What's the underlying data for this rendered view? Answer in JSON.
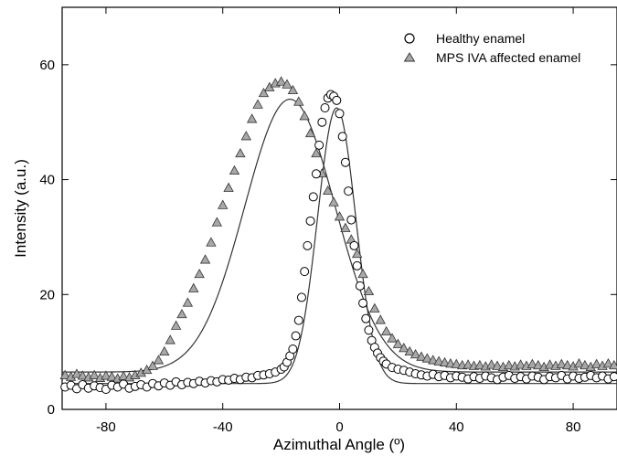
{
  "chart_data": {
    "type": "scatter",
    "title": "",
    "xlabel": "Azimuthal Angle (º)",
    "ylabel": "Intensity (a.u.)",
    "xlim": [
      -95,
      95
    ],
    "ylim": [
      0,
      70
    ],
    "xticks": [
      -80,
      -40,
      0,
      40,
      80
    ],
    "yticks": [
      0,
      20,
      40,
      60
    ],
    "grid": false,
    "legend_position": "top-right",
    "colors": {
      "axis": "#000000",
      "circle_stroke": "#000000",
      "circle_fill": "#ffffff",
      "triangle_fill": "#a8a8a8",
      "triangle_stroke": "#333333",
      "fit_line": "#333333"
    },
    "series": [
      {
        "name": "Healthy enamel",
        "marker": "circle",
        "x": [
          -94,
          -92,
          -90,
          -88,
          -86,
          -84,
          -82,
          -80,
          -78,
          -76,
          -74,
          -72,
          -70,
          -68,
          -66,
          -64,
          -62,
          -60,
          -58,
          -56,
          -54,
          -52,
          -50,
          -48,
          -46,
          -44,
          -42,
          -40,
          -38,
          -36,
          -34,
          -32,
          -30,
          -28,
          -26,
          -24,
          -22,
          -20,
          -19,
          -18,
          -17,
          -16,
          -15,
          -14,
          -13,
          -12,
          -11,
          -10,
          -9,
          -8,
          -7,
          -6,
          -5,
          -4,
          -3,
          -2,
          -1,
          0,
          1,
          2,
          3,
          4,
          5,
          6,
          7,
          8,
          9,
          10,
          11,
          12,
          13,
          14,
          15,
          16,
          18,
          20,
          22,
          24,
          26,
          28,
          30,
          32,
          34,
          36,
          38,
          40,
          42,
          44,
          46,
          48,
          50,
          52,
          54,
          56,
          58,
          60,
          62,
          64,
          66,
          68,
          70,
          72,
          74,
          76,
          78,
          80,
          82,
          84,
          86,
          88,
          90,
          92,
          94
        ],
        "y": [
          3.9,
          4.2,
          3.6,
          4.3,
          3.7,
          4.1,
          3.8,
          3.5,
          4.2,
          3.9,
          4.4,
          3.7,
          4.0,
          4.3,
          3.9,
          4.5,
          4.1,
          4.6,
          4.2,
          4.8,
          4.3,
          4.7,
          4.5,
          4.9,
          4.6,
          5.0,
          4.8,
          5.2,
          5.1,
          5.4,
          5.2,
          5.6,
          5.5,
          5.9,
          6.0,
          6.2,
          6.5,
          7.0,
          7.4,
          8.2,
          9.3,
          10.5,
          12.8,
          15.5,
          19.5,
          24.0,
          28.5,
          32.8,
          37.0,
          41.0,
          46.0,
          50.0,
          52.5,
          54.2,
          54.8,
          54.5,
          53.8,
          51.5,
          47.5,
          43.0,
          38.0,
          33.0,
          28.5,
          25.0,
          21.5,
          18.5,
          15.8,
          13.8,
          12.0,
          10.8,
          9.8,
          9.0,
          8.4,
          7.9,
          7.3,
          7.0,
          6.8,
          6.5,
          6.2,
          6.0,
          5.8,
          6.1,
          5.7,
          5.9,
          5.5,
          5.8,
          5.6,
          5.3,
          5.7,
          5.4,
          5.8,
          5.5,
          5.2,
          5.6,
          5.9,
          5.4,
          5.7,
          5.3,
          5.8,
          5.6,
          5.2,
          5.7,
          5.5,
          5.9,
          5.3,
          5.8,
          5.4,
          5.6,
          5.9,
          5.5,
          5.8,
          5.3,
          5.7
        ]
      },
      {
        "name": "MPS IVA affected enamel",
        "marker": "triangle",
        "x": [
          -94,
          -92,
          -90,
          -88,
          -86,
          -84,
          -82,
          -80,
          -78,
          -76,
          -74,
          -72,
          -70,
          -68,
          -66,
          -64,
          -62,
          -60,
          -58,
          -56,
          -54,
          -52,
          -50,
          -48,
          -46,
          -44,
          -42,
          -40,
          -38,
          -36,
          -34,
          -32,
          -30,
          -28,
          -26,
          -24,
          -22,
          -20,
          -18,
          -16,
          -14,
          -12,
          -10,
          -8,
          -6,
          -4,
          -2,
          0,
          2,
          4,
          6,
          8,
          10,
          12,
          14,
          16,
          18,
          20,
          22,
          24,
          26,
          28,
          30,
          32,
          34,
          36,
          38,
          40,
          42,
          44,
          46,
          48,
          50,
          52,
          54,
          56,
          58,
          60,
          62,
          64,
          66,
          68,
          70,
          72,
          74,
          76,
          78,
          80,
          82,
          84,
          86,
          88,
          90,
          92,
          94
        ],
        "y": [
          5.9,
          5.6,
          6.1,
          5.8,
          5.5,
          5.9,
          5.4,
          5.8,
          5.6,
          5.3,
          5.7,
          5.5,
          5.9,
          6.3,
          6.8,
          7.5,
          8.5,
          10.0,
          12.0,
          14.5,
          16.5,
          18.5,
          21.0,
          23.5,
          26.0,
          29.0,
          32.5,
          35.5,
          38.5,
          41.5,
          44.5,
          47.5,
          50.5,
          53.0,
          55.0,
          56.0,
          56.7,
          57.0,
          56.5,
          55.5,
          53.5,
          51.0,
          48.0,
          44.5,
          41.0,
          38.0,
          36.0,
          33.5,
          31.5,
          29.5,
          27.0,
          23.5,
          20.5,
          17.5,
          15.5,
          13.5,
          12.3,
          11.3,
          10.6,
          10.0,
          9.5,
          9.1,
          8.8,
          8.5,
          8.3,
          8.1,
          7.9,
          7.8,
          7.6,
          7.7,
          7.5,
          7.6,
          7.4,
          7.7,
          7.5,
          7.3,
          7.6,
          7.4,
          7.7,
          7.5,
          7.8,
          7.6,
          7.3,
          7.7,
          7.5,
          7.8,
          7.6,
          7.4,
          7.9,
          7.6,
          7.3,
          7.8,
          7.5,
          7.9,
          7.6
        ]
      }
    ],
    "fits": [
      {
        "series": "Healthy enamel",
        "shape": "gaussian",
        "center": -1,
        "amplitude": 48,
        "sigma": 6.5,
        "baseline": 4.5
      },
      {
        "series": "MPS IVA affected enamel",
        "shape": "gaussian",
        "center": -17,
        "amplitude": 47.5,
        "sigma": 15.5,
        "baseline": 6.5
      }
    ]
  }
}
